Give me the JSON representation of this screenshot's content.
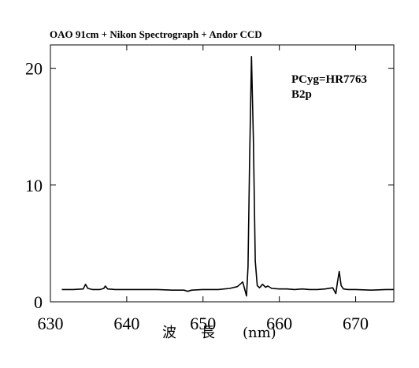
{
  "chart_data": {
    "type": "line",
    "title": "OAO 91cm + Nikon Spectrograph + Andor CCD",
    "xlabel_parts": [
      "波",
      "長",
      "(nm)"
    ],
    "ylabel": "",
    "xlim": [
      630,
      675
    ],
    "ylim": [
      0,
      22
    ],
    "x_ticks": [
      630,
      640,
      650,
      660,
      670
    ],
    "y_ticks": [
      0,
      10,
      20
    ],
    "annotations": [
      "PCyg=HR7763",
      "B2p"
    ],
    "grid": false,
    "series": [
      {
        "x": [
          631.5,
          633.0,
          634.3,
          634.6,
          634.9,
          635.5,
          636.5,
          637.0,
          637.2,
          637.5,
          638.5,
          640.0,
          642.0,
          644.0,
          646.0,
          647.5,
          648.0,
          648.5,
          650.0,
          652.0,
          653.5,
          654.5,
          655.2,
          655.7,
          655.9,
          656.1,
          656.35,
          656.6,
          656.85,
          657.1,
          657.4,
          657.8,
          658.2,
          658.5,
          659.0,
          660.0,
          661.0,
          662.0,
          663.0,
          664.0,
          665.0,
          666.0,
          667.0,
          667.4,
          667.6,
          667.85,
          668.1,
          668.4,
          669.0,
          670.0,
          672.0,
          674.0,
          675.0
        ],
        "y": [
          1.05,
          1.05,
          1.1,
          1.5,
          1.15,
          1.05,
          1.05,
          1.15,
          1.35,
          1.1,
          1.05,
          1.05,
          1.05,
          1.05,
          1.0,
          1.0,
          0.9,
          1.0,
          1.05,
          1.05,
          1.15,
          1.3,
          1.7,
          0.5,
          3.0,
          12.0,
          21.0,
          14.0,
          3.5,
          1.4,
          1.2,
          1.5,
          1.25,
          1.35,
          1.15,
          1.1,
          1.1,
          1.05,
          1.1,
          1.05,
          1.05,
          1.1,
          1.2,
          0.7,
          1.6,
          2.6,
          1.4,
          1.1,
          1.05,
          1.05,
          1.0,
          1.05,
          1.05
        ]
      }
    ]
  }
}
